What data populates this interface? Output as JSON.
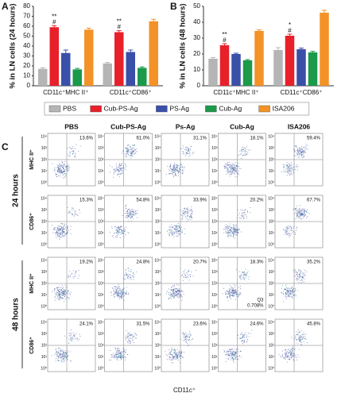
{
  "chart_data": [
    {
      "type": "bar",
      "panel": "A",
      "ylabel": "% in LN cells (24 hours)",
      "categories": [
        "CD11c⁺MHC II⁺",
        "CD11c⁺CD86⁺"
      ],
      "series": [
        {
          "name": "PBS",
          "color": "#b5b5b5",
          "values": [
            17,
            22.5
          ],
          "errors": [
            1,
            1
          ]
        },
        {
          "name": "Cub-PS-Ag",
          "color": "#e8202a",
          "values": [
            59,
            54
          ],
          "errors": [
            1.5,
            1.5
          ]
        },
        {
          "name": "PS-Ag",
          "color": "#3a4fa8",
          "values": [
            33,
            34
          ],
          "errors": [
            3,
            2
          ]
        },
        {
          "name": "Cub-Ag",
          "color": "#1a9a4a",
          "values": [
            16.5,
            18
          ],
          "errors": [
            1,
            1
          ]
        },
        {
          "name": "ISA206",
          "color": "#f39226",
          "values": [
            56.5,
            65
          ],
          "errors": [
            1.5,
            2
          ]
        }
      ],
      "ylim": [
        0,
        80
      ],
      "yticks": [
        0,
        10,
        20,
        30,
        40,
        50,
        60,
        70,
        80
      ],
      "annotations": [
        {
          "category": "CD11c⁺MHC II⁺",
          "series": "Cub-PS-Ag",
          "text": [
            "**",
            "#"
          ]
        },
        {
          "category": "CD11c⁺CD86⁺",
          "series": "Cub-PS-Ag",
          "text": [
            "**",
            "#"
          ]
        }
      ]
    },
    {
      "type": "bar",
      "panel": "B",
      "ylabel": "% in LN cells (48 hours)",
      "categories": [
        "CD11c⁺MHC II⁺",
        "CD11c⁺CD86⁺"
      ],
      "series": [
        {
          "name": "PBS",
          "color": "#b5b5b5",
          "values": [
            17,
            22.5
          ],
          "errors": [
            0.8,
            1.5
          ]
        },
        {
          "name": "Cub-PS-Ag",
          "color": "#e8202a",
          "values": [
            25.5,
            31.5
          ],
          "errors": [
            1,
            1
          ]
        },
        {
          "name": "PS-Ag",
          "color": "#3a4fa8",
          "values": [
            20,
            23
          ],
          "errors": [
            0.5,
            0.7
          ]
        },
        {
          "name": "Cub-Ag",
          "color": "#1a9a4a",
          "values": [
            16,
            21
          ],
          "errors": [
            0.5,
            0.7
          ]
        },
        {
          "name": "ISA206",
          "color": "#f39226",
          "values": [
            34.5,
            46
          ],
          "errors": [
            0.7,
            1.5
          ]
        }
      ],
      "ylim": [
        0,
        50
      ],
      "yticks": [
        0,
        10,
        20,
        30,
        40,
        50
      ],
      "annotations": [
        {
          "category": "CD11c⁺MHC II⁺",
          "series": "Cub-PS-Ag",
          "text": [
            "**",
            "#"
          ]
        },
        {
          "category": "CD11c⁺CD86⁺",
          "series": "Cub-PS-Ag",
          "text": [
            "*",
            "#"
          ]
        }
      ]
    }
  ],
  "flow": {
    "panel": "C",
    "columns": [
      "PBS",
      "Cub-PS-Ag",
      "Ps-Ag",
      "Cub-Ag",
      "ISA206"
    ],
    "groups": [
      "24 hours",
      "48 hours"
    ],
    "row_markers": [
      "MHC II⁺",
      "CD86⁺",
      "MHC II⁺",
      "CD86⁺"
    ],
    "xlabel": "CD11c⁺",
    "axis_ticks": [
      "10⁰",
      "10¹",
      "10²",
      "10³",
      "10⁴"
    ],
    "percentages": [
      [
        "13.6%",
        "61.0%",
        "31.1%",
        "18.1%",
        "59.4%"
      ],
      [
        "15.3%",
        "54.8%",
        "33.9%",
        "20.2%",
        "67.7%"
      ],
      [
        "19.2%",
        "24.8%",
        "20.7%",
        "18.3%",
        "35.2%"
      ],
      [
        "24.1%",
        "31.5%",
        "23.6%",
        "24.6%",
        "45.8%"
      ]
    ],
    "extra": {
      "quadrant": "Q3",
      "value": "0.708%"
    }
  }
}
